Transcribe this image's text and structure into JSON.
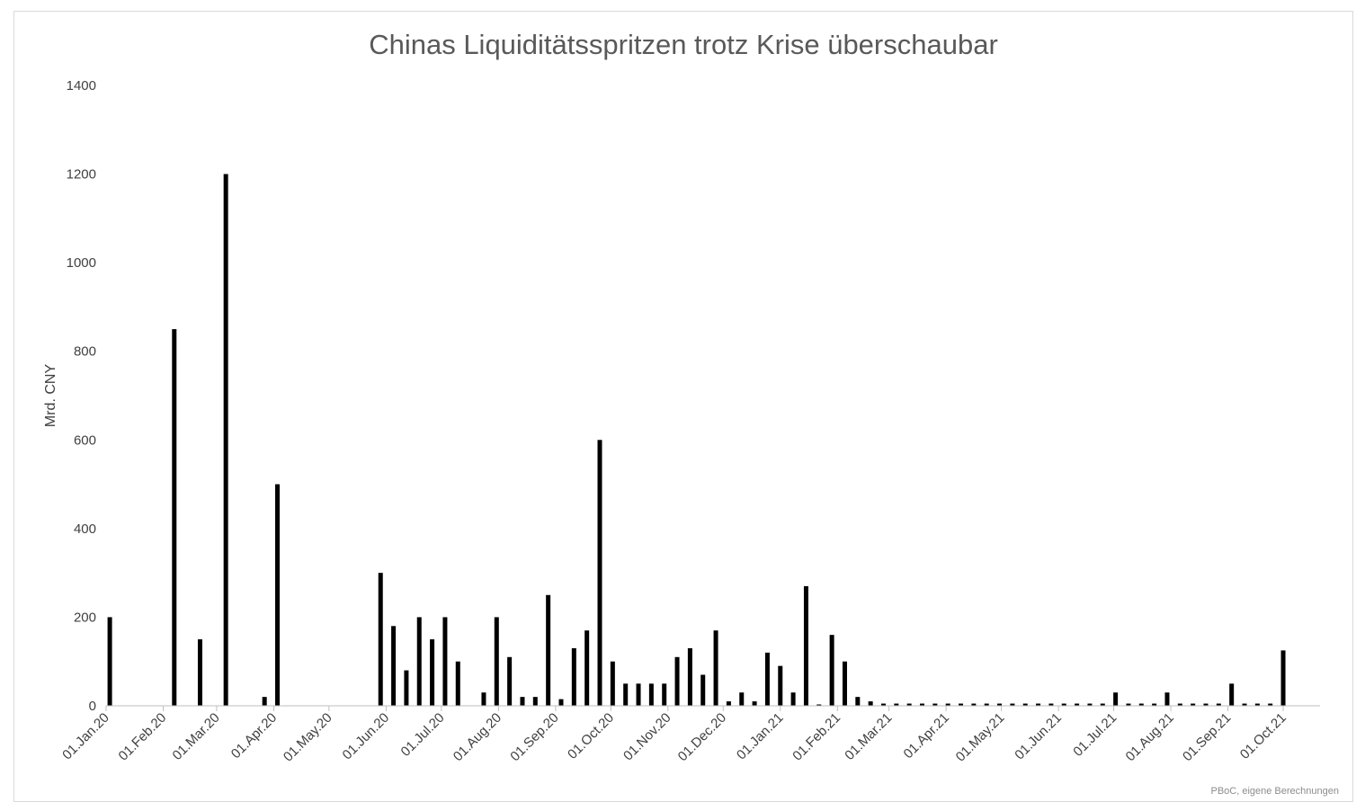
{
  "chart_data": {
    "type": "bar",
    "title": "Chinas Liquiditätsspritzen trotz Krise überschaubar",
    "ylabel": "Mrd. CNY",
    "xlabel": "",
    "source": "PBoC, eigene Berechnungen",
    "ylim": [
      0,
      1400
    ],
    "yticks": [
      0,
      200,
      400,
      600,
      800,
      1000,
      1200,
      1400
    ],
    "grid": false,
    "legend": "none",
    "bar_color": "#000000",
    "x_ticks": [
      {
        "date": "2020-01-01",
        "label": "01.Jan.20"
      },
      {
        "date": "2020-02-01",
        "label": "01.Feb.20"
      },
      {
        "date": "2020-03-01",
        "label": "01.Mar.20"
      },
      {
        "date": "2020-04-01",
        "label": "01.Apr.20"
      },
      {
        "date": "2020-05-01",
        "label": "01.May.20"
      },
      {
        "date": "2020-06-01",
        "label": "01.Jun.20"
      },
      {
        "date": "2020-07-01",
        "label": "01.Jul.20"
      },
      {
        "date": "2020-08-01",
        "label": "01.Aug.20"
      },
      {
        "date": "2020-09-01",
        "label": "01.Sep.20"
      },
      {
        "date": "2020-10-01",
        "label": "01.Oct.20"
      },
      {
        "date": "2020-11-01",
        "label": "01.Nov.20"
      },
      {
        "date": "2020-12-01",
        "label": "01.Dec.20"
      },
      {
        "date": "2021-01-01",
        "label": "01.Jan.21"
      },
      {
        "date": "2021-02-01",
        "label": "01.Feb.21"
      },
      {
        "date": "2021-03-01",
        "label": "01.Mar.21"
      },
      {
        "date": "2021-04-01",
        "label": "01.Apr.21"
      },
      {
        "date": "2021-05-01",
        "label": "01.May.21"
      },
      {
        "date": "2021-06-01",
        "label": "01.Jun.21"
      },
      {
        "date": "2021-07-01",
        "label": "01.Jul.21"
      },
      {
        "date": "2021-08-01",
        "label": "01.Aug.21"
      },
      {
        "date": "2021-09-01",
        "label": "01.Sep.21"
      },
      {
        "date": "2021-10-01",
        "label": "01.Oct.21"
      }
    ],
    "xlim": [
      "2020-01-01",
      "2021-10-21"
    ],
    "bars": [
      {
        "date": "2020-01-03",
        "value": 200
      },
      {
        "date": "2020-02-07",
        "value": 850
      },
      {
        "date": "2020-02-21",
        "value": 150
      },
      {
        "date": "2020-03-06",
        "value": 1200
      },
      {
        "date": "2020-03-27",
        "value": 20
      },
      {
        "date": "2020-04-03",
        "value": 500
      },
      {
        "date": "2020-05-29",
        "value": 300
      },
      {
        "date": "2020-06-05",
        "value": 180
      },
      {
        "date": "2020-06-12",
        "value": 80
      },
      {
        "date": "2020-06-19",
        "value": 200
      },
      {
        "date": "2020-06-26",
        "value": 150
      },
      {
        "date": "2020-07-03",
        "value": 200
      },
      {
        "date": "2020-07-10",
        "value": 100
      },
      {
        "date": "2020-07-24",
        "value": 30
      },
      {
        "date": "2020-07-31",
        "value": 200
      },
      {
        "date": "2020-08-07",
        "value": 110
      },
      {
        "date": "2020-08-14",
        "value": 20
      },
      {
        "date": "2020-08-21",
        "value": 20
      },
      {
        "date": "2020-08-28",
        "value": 250
      },
      {
        "date": "2020-09-04",
        "value": 15
      },
      {
        "date": "2020-09-11",
        "value": 130
      },
      {
        "date": "2020-09-18",
        "value": 170
      },
      {
        "date": "2020-09-25",
        "value": 600
      },
      {
        "date": "2020-10-02",
        "value": 100
      },
      {
        "date": "2020-10-09",
        "value": 50
      },
      {
        "date": "2020-10-16",
        "value": 50
      },
      {
        "date": "2020-10-23",
        "value": 50
      },
      {
        "date": "2020-10-30",
        "value": 50
      },
      {
        "date": "2020-11-06",
        "value": 110
      },
      {
        "date": "2020-11-13",
        "value": 130
      },
      {
        "date": "2020-11-20",
        "value": 70
      },
      {
        "date": "2020-11-27",
        "value": 170
      },
      {
        "date": "2020-12-04",
        "value": 10
      },
      {
        "date": "2020-12-11",
        "value": 30
      },
      {
        "date": "2020-12-18",
        "value": 10
      },
      {
        "date": "2020-12-25",
        "value": 120
      },
      {
        "date": "2021-01-01",
        "value": 90
      },
      {
        "date": "2021-01-08",
        "value": 30
      },
      {
        "date": "2021-01-15",
        "value": 270
      },
      {
        "date": "2021-01-22",
        "value": 2
      },
      {
        "date": "2021-01-29",
        "value": 160
      },
      {
        "date": "2021-02-05",
        "value": 100
      },
      {
        "date": "2021-02-12",
        "value": 20
      },
      {
        "date": "2021-02-19",
        "value": 10
      },
      {
        "date": "2021-02-26",
        "value": 5
      },
      {
        "date": "2021-03-05",
        "value": 5
      },
      {
        "date": "2021-03-12",
        "value": 5
      },
      {
        "date": "2021-03-19",
        "value": 5
      },
      {
        "date": "2021-03-26",
        "value": 5
      },
      {
        "date": "2021-04-02",
        "value": 5
      },
      {
        "date": "2021-04-09",
        "value": 5
      },
      {
        "date": "2021-04-16",
        "value": 5
      },
      {
        "date": "2021-04-23",
        "value": 5
      },
      {
        "date": "2021-04-30",
        "value": 5
      },
      {
        "date": "2021-05-07",
        "value": 5
      },
      {
        "date": "2021-05-14",
        "value": 5
      },
      {
        "date": "2021-05-21",
        "value": 5
      },
      {
        "date": "2021-05-28",
        "value": 5
      },
      {
        "date": "2021-06-04",
        "value": 5
      },
      {
        "date": "2021-06-11",
        "value": 5
      },
      {
        "date": "2021-06-18",
        "value": 5
      },
      {
        "date": "2021-06-25",
        "value": 5
      },
      {
        "date": "2021-07-02",
        "value": 30
      },
      {
        "date": "2021-07-09",
        "value": 5
      },
      {
        "date": "2021-07-16",
        "value": 5
      },
      {
        "date": "2021-07-23",
        "value": 5
      },
      {
        "date": "2021-07-30",
        "value": 30
      },
      {
        "date": "2021-08-06",
        "value": 5
      },
      {
        "date": "2021-08-13",
        "value": 5
      },
      {
        "date": "2021-08-20",
        "value": 5
      },
      {
        "date": "2021-08-27",
        "value": 5
      },
      {
        "date": "2021-09-03",
        "value": 50
      },
      {
        "date": "2021-09-10",
        "value": 5
      },
      {
        "date": "2021-09-17",
        "value": 5
      },
      {
        "date": "2021-09-24",
        "value": 5
      },
      {
        "date": "2021-10-01",
        "value": 125
      }
    ]
  }
}
